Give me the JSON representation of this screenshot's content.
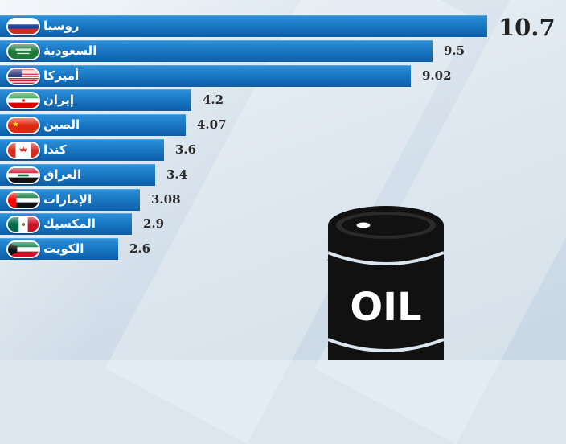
{
  "chart_data": {
    "type": "bar",
    "orientation": "horizontal",
    "categories": [
      "روسيا",
      "السعودية",
      "أميركا",
      "إيران",
      "الصين",
      "كندا",
      "العراق",
      "الإمارات",
      "المكسيك",
      "الكويت"
    ],
    "values": [
      10.7,
      9.5,
      9.02,
      4.2,
      4.07,
      3.6,
      3.4,
      3.08,
      2.9,
      2.6
    ],
    "value_labels": [
      "10.7",
      "9.5",
      "9.02",
      "4.2",
      "4.07",
      "3.6",
      "3.4",
      "3.08",
      "2.9",
      "2.6"
    ],
    "flags": [
      "russia-flag-icon",
      "saudi-arabia-flag-icon",
      "usa-flag-icon",
      "iran-flag-icon",
      "china-flag-icon",
      "canada-flag-icon",
      "iraq-flag-icon",
      "uae-flag-icon",
      "mexico-flag-icon",
      "kuwait-flag-icon"
    ],
    "title": "",
    "xlabel": "",
    "ylabel": "",
    "grid": false,
    "legend": "none",
    "bar_color": "#1a78c4"
  },
  "barrel": {
    "label": "OIL",
    "icon": "oil-barrel-icon",
    "color": "#111111"
  },
  "colors": {
    "background": "#dbe6ef",
    "bar": "#1a78c4",
    "label_text": "#ffffff",
    "value_text": "#2a2a2a"
  }
}
